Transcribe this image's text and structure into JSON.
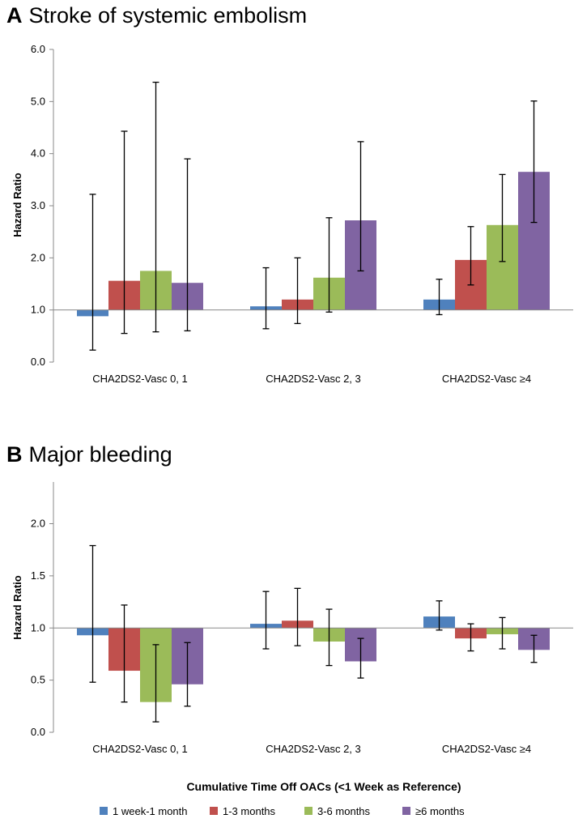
{
  "chart_data": [
    {
      "panel": "A",
      "type": "bar",
      "title": "Stroke of systemic embolism",
      "ylabel": "Hazard Ratio",
      "ylim": [
        0,
        6
      ],
      "yticks": [
        "0.0",
        "1.0",
        "2.0",
        "3.0",
        "4.0",
        "5.0",
        "6.0"
      ],
      "baseline": 1.0,
      "categories": [
        "CHA2DS2-Vasc 0, 1",
        "CHA2DS2-Vasc 2, 3",
        "CHA2DS2-Vasc ≥4"
      ],
      "series": [
        {
          "name": "1 week-1 month",
          "color": "#4f81bd",
          "values": [
            0.88,
            1.07,
            1.2
          ],
          "ci_low": [
            0.23,
            0.64,
            0.91
          ],
          "ci_high": [
            3.22,
            1.81,
            1.59
          ]
        },
        {
          "name": "1-3 months",
          "color": "#c0504d",
          "values": [
            1.56,
            1.2,
            1.96
          ],
          "ci_low": [
            0.55,
            0.74,
            1.48
          ],
          "ci_high": [
            4.43,
            2.0,
            2.6
          ]
        },
        {
          "name": "3-6 months",
          "color": "#9bbb59",
          "values": [
            1.75,
            1.62,
            2.63
          ],
          "ci_low": [
            0.58,
            0.96,
            1.93
          ],
          "ci_high": [
            5.37,
            2.77,
            3.6
          ]
        },
        {
          "name": "≥6 months",
          "color": "#8064a2",
          "values": [
            1.52,
            2.72,
            3.65
          ],
          "ci_low": [
            0.6,
            1.75,
            2.68
          ],
          "ci_high": [
            3.9,
            4.23,
            5.01
          ]
        }
      ]
    },
    {
      "panel": "B",
      "type": "bar",
      "title": "Major bleeding",
      "ylabel": "Hazard Ratio",
      "ylim": [
        0,
        2.4
      ],
      "yticks": [
        "0.0",
        "0.5",
        "1.0",
        "1.5",
        "2.0"
      ],
      "baseline": 1.0,
      "categories": [
        "CHA2DS2-Vasc 0, 1",
        "CHA2DS2-Vasc 2, 3",
        "CHA2DS2-Vasc ≥4"
      ],
      "series": [
        {
          "name": "1 week-1 month",
          "color": "#4f81bd",
          "values": [
            0.93,
            1.04,
            1.11
          ],
          "ci_low": [
            0.48,
            0.8,
            0.98
          ],
          "ci_high": [
            1.79,
            1.35,
            1.26
          ]
        },
        {
          "name": "1-3 months",
          "color": "#c0504d",
          "values": [
            0.59,
            1.07,
            0.9
          ],
          "ci_low": [
            0.29,
            0.83,
            0.78
          ],
          "ci_high": [
            1.22,
            1.38,
            1.04
          ]
        },
        {
          "name": "3-6 months",
          "color": "#9bbb59",
          "values": [
            0.29,
            0.87,
            0.94
          ],
          "ci_low": [
            0.1,
            0.64,
            0.8
          ],
          "ci_high": [
            0.84,
            1.18,
            1.1
          ]
        },
        {
          "name": "≥6 months",
          "color": "#8064a2",
          "values": [
            0.46,
            0.68,
            0.79
          ],
          "ci_low": [
            0.25,
            0.52,
            0.67
          ],
          "ci_high": [
            0.86,
            0.9,
            0.93
          ]
        }
      ]
    }
  ],
  "shared": {
    "xlabel": "Cumulative Time Off OACs (<1 Week as Reference)",
    "legend": [
      "1 week-1 month",
      "1-3 months",
      "3-6 months",
      "≥6 months"
    ],
    "legend_colors": [
      "#4f81bd",
      "#c0504d",
      "#9bbb59",
      "#8064a2"
    ]
  }
}
